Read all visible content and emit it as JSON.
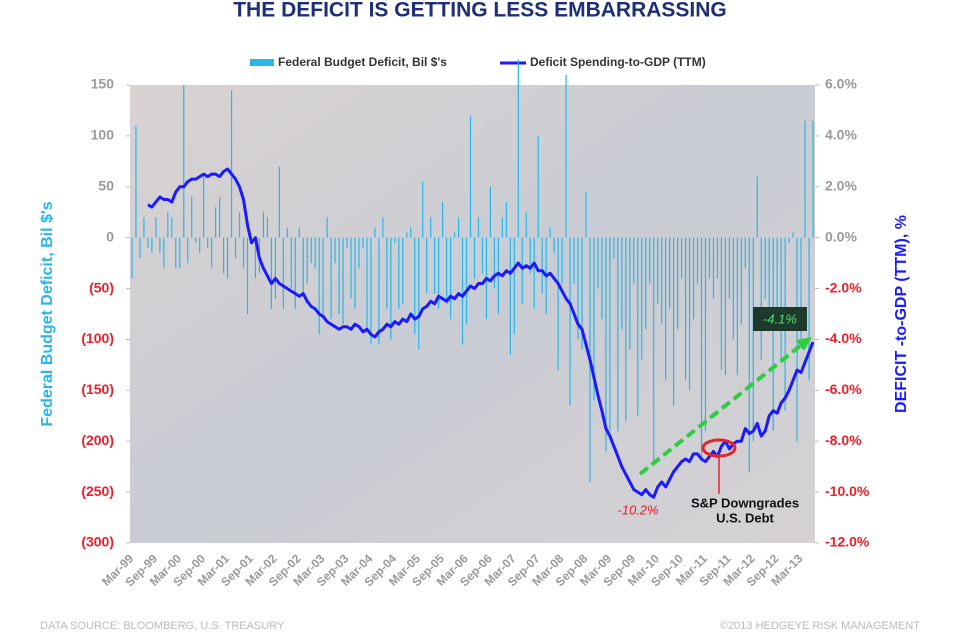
{
  "chart_data": {
    "type": "bar-line",
    "title": "THE DEFICIT IS GETTING LESS EMBARRASSING",
    "ylabel": "Federal Budget Deficit, Bil $'s",
    "y2label": "DEFICIT -to-GDP (TTM), %",
    "ylim": [
      -300,
      150
    ],
    "yticks": [
      150,
      100,
      50,
      0,
      {
        "value": -50,
        "label": "(50)"
      },
      {
        "value": -100,
        "label": "(100)"
      },
      {
        "value": -150,
        "label": "(150)"
      },
      {
        "value": -200,
        "label": "(200)"
      },
      {
        "value": -250,
        "label": "(250)"
      },
      {
        "value": -300,
        "label": "(300)"
      }
    ],
    "y2lim": [
      -12,
      6
    ],
    "y2ticks": [
      {
        "value": 6,
        "label": "6.0%"
      },
      {
        "value": 4,
        "label": "4.0%"
      },
      {
        "value": 2,
        "label": "2.0%"
      },
      {
        "value": 0,
        "label": "0.0%"
      },
      {
        "value": -2,
        "label": "-2.0%"
      },
      {
        "value": -4,
        "label": "-4.0%"
      },
      {
        "value": -6,
        "label": "-6.0%"
      },
      {
        "value": -8,
        "label": "-8.0%"
      },
      {
        "value": -10,
        "label": "-10.0%"
      },
      {
        "value": -12,
        "label": "-12.0%"
      }
    ],
    "categories": [
      "Mar-99",
      null,
      null,
      null,
      null,
      null,
      "Sep-99",
      null,
      null,
      null,
      null,
      null,
      "Mar-00",
      null,
      null,
      null,
      null,
      null,
      "Sep-00",
      null,
      null,
      null,
      null,
      null,
      "Mar-01",
      null,
      null,
      null,
      null,
      null,
      "Sep-01",
      null,
      null,
      null,
      null,
      null,
      "Mar-02",
      null,
      null,
      null,
      null,
      null,
      "Sep-02",
      null,
      null,
      null,
      null,
      null,
      "Mar-03",
      null,
      null,
      null,
      null,
      null,
      "Sep-03",
      null,
      null,
      null,
      null,
      null,
      "Mar-04",
      null,
      null,
      null,
      null,
      null,
      "Sep-04",
      null,
      null,
      null,
      null,
      null,
      "Mar-05",
      null,
      null,
      null,
      null,
      null,
      "Sep-05",
      null,
      null,
      null,
      null,
      null,
      "Mar-06",
      null,
      null,
      null,
      null,
      null,
      "Sep-06",
      null,
      null,
      null,
      null,
      null,
      "Mar-07",
      null,
      null,
      null,
      null,
      null,
      "Sep-07",
      null,
      null,
      null,
      null,
      null,
      "Mar-08",
      null,
      null,
      null,
      null,
      null,
      "Sep-08",
      null,
      null,
      null,
      null,
      null,
      "Mar-09",
      null,
      null,
      null,
      null,
      null,
      "Sep-09",
      null,
      null,
      null,
      null,
      null,
      "Mar-10",
      null,
      null,
      null,
      null,
      null,
      "Sep-10",
      null,
      null,
      null,
      null,
      null,
      "Mar-11",
      null,
      null,
      null,
      null,
      null,
      "Sep-11",
      null,
      null,
      null,
      null,
      null,
      "Mar-12",
      null,
      null,
      null,
      null,
      null,
      "Sep-12",
      null,
      null,
      null,
      null,
      null,
      "Mar-13",
      null,
      null,
      null
    ],
    "series": [
      {
        "name": "Federal Budget Deficit, Bil $'s",
        "color": "#29b6e8",
        "axis": "y",
        "values": [
          -40,
          110,
          -20,
          20,
          -10,
          -15,
          20,
          -15,
          -30,
          25,
          20,
          -30,
          -30,
          150,
          -25,
          40,
          -5,
          -15,
          60,
          -10,
          -30,
          30,
          40,
          -35,
          -40,
          145,
          -20,
          25,
          -30,
          -75,
          -5,
          -40,
          -35,
          25,
          20,
          -70,
          -60,
          70,
          -70,
          10,
          -50,
          -70,
          10,
          -55,
          -45,
          -25,
          -30,
          -95,
          -80,
          20,
          -80,
          -25,
          -75,
          -85,
          -10,
          -60,
          -70,
          -30,
          -10,
          -90,
          -105,
          10,
          -105,
          20,
          -70,
          -100,
          -5,
          -70,
          -65,
          5,
          10,
          -95,
          -110,
          55,
          -55,
          20,
          -55,
          -70,
          35,
          -65,
          -80,
          5,
          20,
          -105,
          -85,
          120,
          -40,
          20,
          -35,
          -80,
          50,
          -50,
          -75,
          20,
          35,
          -115,
          -95,
          175,
          -65,
          25,
          -35,
          -70,
          100,
          -55,
          -75,
          10,
          -15,
          -130,
          -45,
          160,
          -165,
          -45,
          -100,
          -110,
          45,
          -240,
          -160,
          -50,
          -80,
          -210,
          -190,
          -20,
          -190,
          -90,
          -180,
          -110,
          -45,
          -175,
          -120,
          -90,
          -45,
          -220,
          -65,
          -85,
          -140,
          -70,
          -165,
          -90,
          -40,
          -140,
          -150,
          -80,
          -45,
          -220,
          -190,
          -40,
          -60,
          -40,
          -130,
          -135,
          -60,
          -100,
          -135,
          -85,
          -30,
          -230,
          -200,
          60,
          -120,
          -60,
          -70,
          -190,
          -75,
          -120,
          -170,
          -5,
          5,
          -200,
          -105,
          115,
          -140,
          115
        ]
      },
      {
        "name": "Deficit Spending-to-GDP (TTM)",
        "color": "#1a1aff",
        "axis": "y2",
        "values": [
          null,
          null,
          null,
          null,
          1.3,
          1.2,
          1.4,
          1.6,
          1.5,
          1.5,
          1.4,
          1.8,
          2.0,
          2.0,
          2.2,
          2.3,
          2.3,
          2.4,
          2.5,
          2.4,
          2.5,
          2.5,
          2.4,
          2.6,
          2.7,
          2.5,
          2.3,
          2.0,
          1.5,
          0.5,
          -0.2,
          0.0,
          -0.8,
          -1.2,
          -1.5,
          -1.8,
          -1.6,
          -1.8,
          -1.9,
          -2.0,
          -2.1,
          -2.2,
          -2.3,
          -2.2,
          -2.5,
          -2.7,
          -2.8,
          -3.0,
          -3.1,
          -3.3,
          -3.4,
          -3.5,
          -3.6,
          -3.5,
          -3.5,
          -3.6,
          -3.4,
          -3.5,
          -3.7,
          -3.6,
          -3.8,
          -3.9,
          -3.7,
          -3.6,
          -3.4,
          -3.5,
          -3.3,
          -3.4,
          -3.2,
          -3.3,
          -3.0,
          -3.2,
          -3.1,
          -2.8,
          -2.7,
          -2.5,
          -2.6,
          -2.3,
          -2.4,
          -2.5,
          -2.3,
          -2.4,
          -2.2,
          -2.3,
          -2.1,
          -1.9,
          -2.0,
          -1.8,
          -1.8,
          -1.6,
          -1.7,
          -1.5,
          -1.4,
          -1.5,
          -1.3,
          -1.4,
          -1.2,
          -1.0,
          -1.2,
          -1.1,
          -1.2,
          -1.0,
          -1.3,
          -1.3,
          -1.5,
          -1.4,
          -1.6,
          -1.8,
          -2.1,
          -2.4,
          -2.6,
          -3.0,
          -3.4,
          -3.6,
          -4.2,
          -4.8,
          -5.5,
          -6.2,
          -6.8,
          -7.5,
          -7.8,
          -8.2,
          -8.6,
          -9.0,
          -9.3,
          -9.6,
          -9.9,
          -10.0,
          -10.1,
          -9.9,
          -10.1,
          -10.2,
          -9.8,
          -9.6,
          -9.8,
          -9.5,
          -9.2,
          -9.0,
          -8.8,
          -8.7,
          -8.8,
          -8.5,
          -8.5,
          -8.7,
          -8.8,
          -8.6,
          -8.4,
          -8.6,
          -8.2,
          -8.0,
          -8.3,
          -8.1,
          -8.0,
          -8.0,
          -7.5,
          -7.7,
          -7.6,
          -7.3,
          -7.8,
          -7.6,
          -7.0,
          -6.8,
          -6.9,
          -6.5,
          -6.3,
          -6.0,
          -5.6,
          -5.2,
          -5.3,
          -4.9,
          -4.5,
          -4.1
        ]
      }
    ],
    "annotations": {
      "latest": "-4.1%",
      "trough": "-10.2%",
      "downgrade": [
        "S&P Downgrades",
        "U.S. Debt"
      ]
    },
    "footer": {
      "source": "DATA SOURCE: BLOOMBERG, U.S. TREASURY",
      "copyright": "©2013 HEDGEYE RISK MANAGEMENT"
    }
  }
}
